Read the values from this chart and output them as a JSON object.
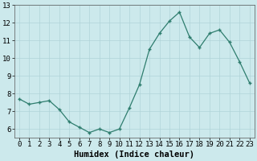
{
  "x": [
    0,
    1,
    2,
    3,
    4,
    5,
    6,
    7,
    8,
    9,
    10,
    11,
    12,
    13,
    14,
    15,
    16,
    17,
    18,
    19,
    20,
    21,
    22,
    23
  ],
  "y": [
    7.7,
    7.4,
    7.5,
    7.6,
    7.1,
    6.4,
    6.1,
    5.8,
    6.0,
    5.8,
    6.0,
    7.2,
    8.5,
    10.5,
    11.4,
    12.1,
    12.6,
    11.2,
    10.6,
    11.4,
    11.6,
    10.9,
    9.8,
    8.6
  ],
  "xlabel": "Humidex (Indice chaleur)",
  "ylim": [
    5.5,
    13
  ],
  "xlim": [
    -0.5,
    23.5
  ],
  "yticks": [
    6,
    7,
    8,
    9,
    10,
    11,
    12,
    13
  ],
  "xticks": [
    0,
    1,
    2,
    3,
    4,
    5,
    6,
    7,
    8,
    9,
    10,
    11,
    12,
    13,
    14,
    15,
    16,
    17,
    18,
    19,
    20,
    21,
    22,
    23
  ],
  "xtick_labels": [
    "0",
    "1",
    "2",
    "3",
    "4",
    "5",
    "6",
    "7",
    "8",
    "9",
    "10",
    "11",
    "12",
    "13",
    "14",
    "15",
    "16",
    "17",
    "18",
    "19",
    "20",
    "21",
    "22",
    "23"
  ],
  "line_color": "#2e7d6e",
  "marker": "+",
  "bg_color": "#cce9ec",
  "grid_color": "#b0d4d8",
  "label_color": "#000000",
  "tick_fontsize": 6.5,
  "xlabel_fontsize": 7.5
}
